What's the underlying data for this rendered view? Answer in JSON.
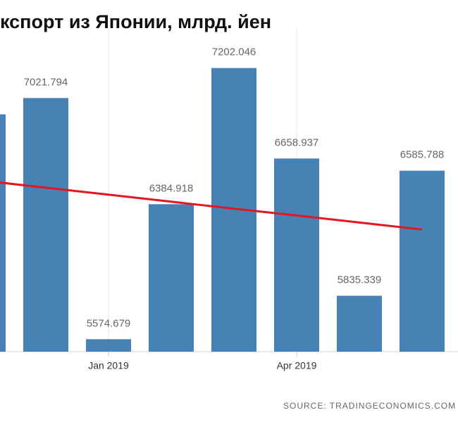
{
  "chart_data": {
    "type": "bar",
    "title": "кспорт из Японии, млрд. йен",
    "categories": [
      null,
      null,
      "Jan 2019",
      null,
      null,
      "Apr 2019",
      null,
      null
    ],
    "series": [
      {
        "type": "bar",
        "color": "#4682b4",
        "values": [
          6924,
          7021.794,
          5574.679,
          6384.918,
          7202.046,
          6658.937,
          5835.339,
          6585.788
        ]
      },
      {
        "type": "line",
        "color": "#e8141e",
        "values": [
          6526,
          6484,
          6442,
          6400,
          6358,
          6317,
          6275,
          6233
        ]
      }
    ],
    "ylim": [
      5500,
      7610
    ],
    "source": "SOURCE: TRADINGECONOMICS.COM"
  }
}
